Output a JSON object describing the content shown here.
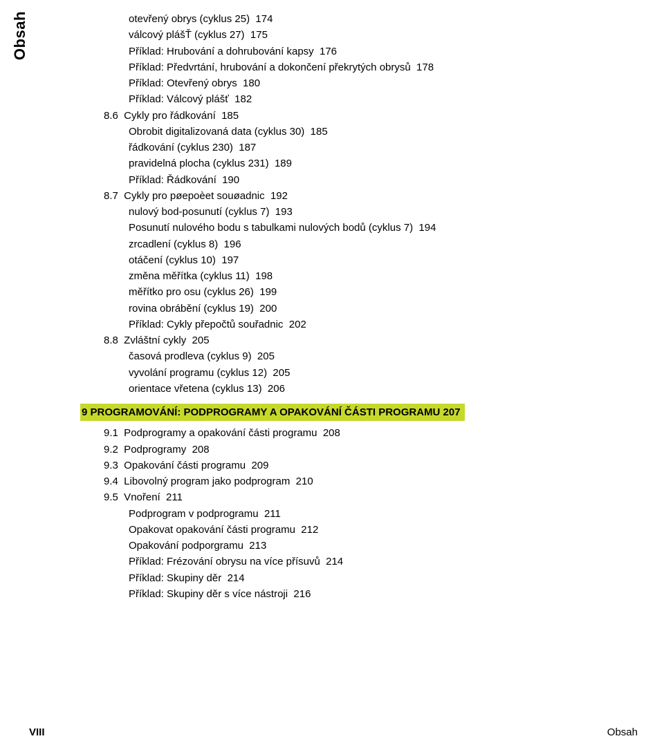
{
  "side_label": "Obsah",
  "lines": [
    {
      "cls": "indent2",
      "text": "otevřený obrys (cyklus 25)  174"
    },
    {
      "cls": "indent2",
      "text": "válcový plášŤ (cyklus 27)  175"
    },
    {
      "cls": "indent2",
      "text": "Příklad: Hrubování a dohrubování kapsy  176"
    },
    {
      "cls": "indent2",
      "text": "Příklad: Předvrtání, hrubování a dokončení překrytých obrysů  178"
    },
    {
      "cls": "indent2",
      "text": "Příklad: Otevřený obrys  180"
    },
    {
      "cls": "indent2",
      "text": "Příklad: Válcový plášť  182"
    },
    {
      "cls": "indent3",
      "text": "8.6  Cykly pro řádkování  185"
    },
    {
      "cls": "indent2",
      "text": "Obrobit digitalizovaná data (cyklus 30)  185"
    },
    {
      "cls": "indent2",
      "text": "řádkování (cyklus 230)  187"
    },
    {
      "cls": "indent2",
      "text": "pravidelná plocha (cyklus 231)  189"
    },
    {
      "cls": "indent2",
      "text": "Příklad: Řádkování  190"
    },
    {
      "cls": "indent3",
      "text": "8.7  Cykly pro pøepoèet souøadnic  192"
    },
    {
      "cls": "indent2",
      "text": "nulový bod-posunutí (cyklus 7)  193"
    },
    {
      "cls": "indent2",
      "text": "Posunutí nulového bodu s tabulkami nulových bodů (cyklus 7)  194"
    },
    {
      "cls": "indent2",
      "text": "zrcadlení (cyklus 8)  196"
    },
    {
      "cls": "indent2",
      "text": "otáčení (cyklus 10)  197"
    },
    {
      "cls": "indent2",
      "text": "změna měřítka (cyklus 11)  198"
    },
    {
      "cls": "indent2",
      "text": "měřítko pro osu (cyklus 26)  199"
    },
    {
      "cls": "indent2",
      "text": "rovina obrábění (cyklus 19)  200"
    },
    {
      "cls": "indent2",
      "text": "Příklad: Cykly přepočtů souřadnic  202"
    },
    {
      "cls": "indent3",
      "text": "8.8  Zvláštní cykly  205"
    },
    {
      "cls": "indent2",
      "text": "časová prodleva (cyklus 9)  205"
    },
    {
      "cls": "indent2",
      "text": "vyvolání programu (cyklus 12)  205"
    },
    {
      "cls": "indent2",
      "text": "orientace vřetena (cyklus 13)  206"
    }
  ],
  "section_title": "9 PROGRAMOVÁNÍ:  PODPROGRAMY A OPAKOVÁNÍ ČÁSTI PROGRAMU  207",
  "lines2": [
    {
      "cls": "indent3",
      "text": "9.1  Podprogramy a opakování části programu  208"
    },
    {
      "cls": "indent3",
      "text": "9.2  Podprogramy  208"
    },
    {
      "cls": "indent3",
      "text": "9.3  Opakování části programu  209"
    },
    {
      "cls": "indent3",
      "text": "9.4  Libovolný program jako podprogram  210"
    },
    {
      "cls": "indent3",
      "text": "9.5  Vnoření  211"
    },
    {
      "cls": "indent2",
      "text": "Podprogram v podprogramu  211"
    },
    {
      "cls": "indent2",
      "text": "Opakovat opakování části programu  212"
    },
    {
      "cls": "indent2",
      "text": "Opakování podporgramu  213"
    },
    {
      "cls": "indent2",
      "text": "Příklad: Frézování obrysu na více přísuvů  214"
    },
    {
      "cls": "indent2",
      "text": "Příklad: Skupiny děr  214"
    },
    {
      "cls": "indent2",
      "text": "Příklad: Skupiny děr s více nástroji  216"
    }
  ],
  "footer": {
    "left": "VIII",
    "right": "Obsah"
  }
}
